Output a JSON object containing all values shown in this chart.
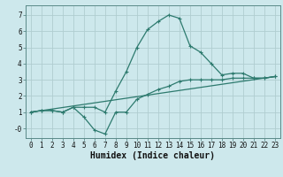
{
  "xlabel": "Humidex (Indice chaleur)",
  "bg_color": "#cde8ec",
  "grid_color": "#b0cdd0",
  "line_color": "#2d7a6e",
  "x_min": -0.5,
  "x_max": 23.5,
  "y_min": -0.6,
  "y_max": 7.6,
  "x_ticks": [
    0,
    1,
    2,
    3,
    4,
    5,
    6,
    7,
    8,
    9,
    10,
    11,
    12,
    13,
    14,
    15,
    16,
    17,
    18,
    19,
    20,
    21,
    22,
    23
  ],
  "y_ticks": [
    0,
    1,
    2,
    3,
    4,
    5,
    6,
    7
  ],
  "y_tick_labels": [
    "-0",
    "1",
    "2",
    "3",
    "4",
    "5",
    "6",
    "7"
  ],
  "upper_line": {
    "x": [
      0,
      1,
      2,
      3,
      4,
      5,
      6,
      7,
      8,
      9,
      10,
      11,
      12,
      13,
      14,
      15,
      16,
      17,
      18,
      19,
      20,
      21,
      22,
      23
    ],
    "y": [
      1.0,
      1.1,
      1.1,
      1.0,
      1.3,
      1.3,
      1.3,
      1.0,
      2.3,
      3.5,
      5.0,
      6.1,
      6.6,
      7.0,
      6.8,
      5.1,
      4.7,
      4.0,
      3.3,
      3.4,
      3.4,
      3.1,
      3.1,
      3.2
    ]
  },
  "middle_line": {
    "x": [
      0,
      23
    ],
    "y": [
      1.0,
      3.2
    ]
  },
  "lower_line": {
    "x": [
      0,
      1,
      2,
      3,
      4,
      5,
      6,
      7,
      8,
      9,
      10,
      11,
      12,
      13,
      14,
      15,
      16,
      17,
      18,
      19,
      20,
      21,
      22,
      23
    ],
    "y": [
      1.0,
      1.1,
      1.1,
      1.0,
      1.3,
      0.7,
      -0.1,
      -0.35,
      1.0,
      1.0,
      1.8,
      2.1,
      2.4,
      2.6,
      2.9,
      3.0,
      3.0,
      3.0,
      3.0,
      3.1,
      3.1,
      3.1,
      3.1,
      3.2
    ]
  },
  "tick_fontsize": 5.5,
  "label_fontsize": 7.0,
  "linewidth": 0.9,
  "markersize": 3.0
}
